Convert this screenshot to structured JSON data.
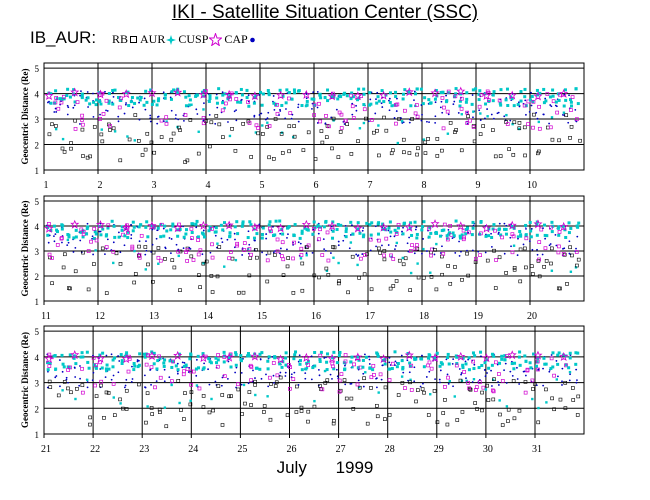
{
  "title": "IKI - Satellite Situation Center (SSC)",
  "satellite": "IB_AUR:",
  "footer": {
    "month": "July",
    "year": "1999"
  },
  "legend": [
    {
      "label": "RB",
      "symbol": "square-icon",
      "color": "#000000"
    },
    {
      "label": "AUR",
      "symbol": "star4-icon",
      "color": "#00c8c8"
    },
    {
      "label": "CUSP",
      "symbol": "star-outline-icon",
      "color": "#d000d0"
    },
    {
      "label": "CAP",
      "symbol": "dot-icon",
      "color": "#0000c0"
    }
  ],
  "colors": {
    "RB": "#000000",
    "AUR": "#00c8c8",
    "CUSP": "#d000d0",
    "CAP": "#0000c0"
  },
  "chart_data": [
    {
      "type": "scatter",
      "ylabel": "Geocentric Distance (Re)",
      "ylim": [
        1,
        5.2
      ],
      "yticks": [
        1,
        2,
        3,
        4,
        5
      ],
      "xlim": [
        1,
        11
      ],
      "xticks": [
        "1",
        "2",
        "3",
        "4",
        "5",
        "6",
        "7",
        "8",
        "9",
        "10"
      ],
      "grid": true,
      "series": [
        {
          "name": "RB",
          "y_range": [
            1.3,
            3.2
          ]
        },
        {
          "name": "AUR",
          "y_range": [
            2.0,
            4.2
          ]
        },
        {
          "name": "CUSP",
          "y_range": [
            2.6,
            4.1
          ]
        },
        {
          "name": "CAP",
          "y_range": [
            2.8,
            4.1
          ]
        }
      ]
    },
    {
      "type": "scatter",
      "ylabel": "Geocentric Distance (Re)",
      "ylim": [
        1,
        5.2
      ],
      "yticks": [
        1,
        2,
        3,
        4,
        5
      ],
      "xlim": [
        11,
        21
      ],
      "xticks": [
        "11",
        "12",
        "13",
        "14",
        "15",
        "16",
        "17",
        "18",
        "19",
        "20"
      ],
      "grid": true,
      "series": [
        {
          "name": "RB",
          "y_range": [
            1.3,
            3.2
          ]
        },
        {
          "name": "AUR",
          "y_range": [
            2.0,
            4.2
          ]
        },
        {
          "name": "CUSP",
          "y_range": [
            2.6,
            4.1
          ]
        },
        {
          "name": "CAP",
          "y_range": [
            2.8,
            4.1
          ]
        }
      ]
    },
    {
      "type": "scatter",
      "ylabel": "Geocentric Distance (Re)",
      "ylim": [
        1,
        5.2
      ],
      "yticks": [
        1,
        2,
        3,
        4,
        5
      ],
      "xlim": [
        21,
        32
      ],
      "xticks": [
        "21",
        "22",
        "23",
        "24",
        "25",
        "26",
        "27",
        "28",
        "29",
        "30",
        "31"
      ],
      "grid": true,
      "series": [
        {
          "name": "RB",
          "y_range": [
            1.3,
            3.2
          ]
        },
        {
          "name": "AUR",
          "y_range": [
            2.0,
            4.2
          ]
        },
        {
          "name": "CUSP",
          "y_range": [
            2.6,
            4.1
          ]
        },
        {
          "name": "CAP",
          "y_range": [
            2.8,
            4.1
          ]
        }
      ]
    }
  ]
}
